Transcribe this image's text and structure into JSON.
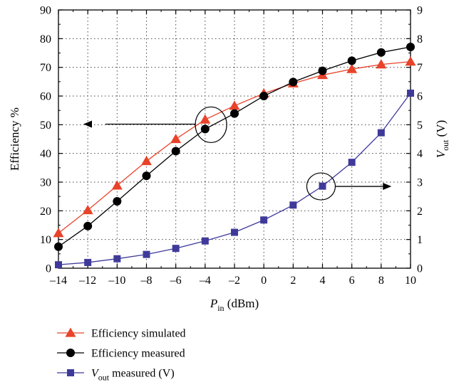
{
  "chart_data": {
    "type": "line",
    "x": [
      -14,
      -12,
      -10,
      -8,
      -6,
      -4,
      -2,
      0,
      2,
      4,
      6,
      8,
      10
    ],
    "x_ticks": [
      "–14",
      "–12",
      "–10",
      "–8",
      "–6",
      "–4",
      "–2",
      "0",
      "2",
      "4",
      "6",
      "8",
      "10"
    ],
    "xlim": [
      -14,
      10
    ],
    "ylim_left": [
      0,
      90
    ],
    "ylim_right": [
      0,
      9
    ],
    "y_left_ticks": [
      "0",
      "10",
      "20",
      "30",
      "40",
      "50",
      "60",
      "70",
      "80",
      "90"
    ],
    "y_right_ticks": [
      "0",
      "1",
      "2",
      "3",
      "4",
      "5",
      "6",
      "7",
      "8",
      "9"
    ],
    "xlabel": {
      "main": "P",
      "sub": "in",
      "rest": " (dBm)"
    },
    "ylabel_left": "Efficiency %",
    "ylabel_right": {
      "main": "V",
      "sub": "out",
      "rest": " (V)"
    },
    "grid": true,
    "legend_position": "bottom",
    "series": [
      {
        "name": "Efficiency simulated",
        "axis": "left",
        "marker": "triangle",
        "color": "#e8432a",
        "values": [
          12.2,
          20.2,
          28.8,
          37.3,
          45.0,
          51.8,
          56.6,
          60.9,
          64.4,
          67.3,
          69.4,
          71.0,
          72.0
        ]
      },
      {
        "name": "Efficiency measured",
        "axis": "left",
        "marker": "circle",
        "color": "#000000",
        "values": [
          7.5,
          14.7,
          23.3,
          32.2,
          40.8,
          48.5,
          53.9,
          60.0,
          64.9,
          68.8,
          72.3,
          75.2,
          77.1
        ]
      },
      {
        "name": "V_out measured (V)",
        "axis": "right",
        "marker": "square",
        "color": "#3f3a9a",
        "values": [
          0.12,
          0.2,
          0.33,
          0.48,
          0.69,
          0.95,
          1.25,
          1.68,
          2.2,
          2.86,
          3.69,
          4.72,
          6.1
        ]
      }
    ],
    "legend": [
      {
        "main": "Efficiency simulated",
        "sub": "",
        "rest": ""
      },
      {
        "main": "Efficiency measured",
        "sub": "",
        "rest": ""
      },
      {
        "main": "V",
        "sub": "out",
        "rest": " measured (V)"
      }
    ]
  }
}
